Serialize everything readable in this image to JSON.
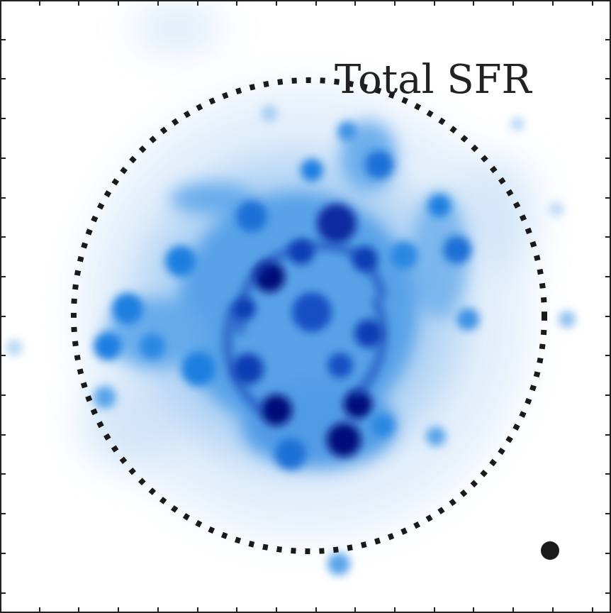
{
  "panel": {
    "label": "Total SFR"
  },
  "colors": {
    "background": "#ffffff",
    "emission_light": "#9cc7f2",
    "emission_mid": "#1a7fe0",
    "emission_dark": "#05107a",
    "aperture": "#1a1a1a",
    "frame": "#222222"
  }
}
